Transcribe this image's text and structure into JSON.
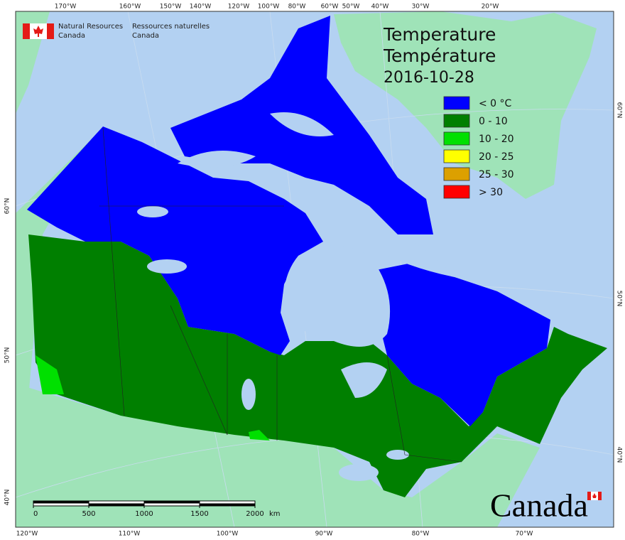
{
  "header": {
    "agency_en": [
      "Natural Resources",
      "Canada"
    ],
    "agency_fr": [
      "Ressources naturelles",
      "Canada"
    ]
  },
  "title": [
    "Temperature",
    "Température"
  ],
  "date": "2016-10-28",
  "legend": [
    {
      "label": "< 0 °C",
      "color": "#0000ff"
    },
    {
      "label": "0 - 10",
      "color": "#007f00"
    },
    {
      "label": "10 - 20",
      "color": "#00e000"
    },
    {
      "label": "20 - 25",
      "color": "#ffff00"
    },
    {
      "label": "25 - 30",
      "color": "#dca000"
    },
    {
      "label": "> 30",
      "color": "#ff0000"
    }
  ],
  "graticule": {
    "top": [
      "170°W",
      "160°W",
      "150°W",
      "140°W",
      "120°W",
      "100°W",
      "80°W",
      "60°W",
      "50°W",
      "40°W",
      "30°W",
      "20°W"
    ],
    "bottom": [
      "120°W",
      "110°W",
      "100°W",
      "90°W",
      "80°W",
      "70°W"
    ],
    "left": [
      "60°N",
      "50°N",
      "40°N"
    ],
    "right": [
      "60°N",
      "50°N",
      "40°N"
    ]
  },
  "scale_bar": {
    "ticks": [
      "0",
      "500",
      "1000",
      "1500",
      "2000"
    ],
    "unit": "km"
  },
  "wordmark": "Canada"
}
